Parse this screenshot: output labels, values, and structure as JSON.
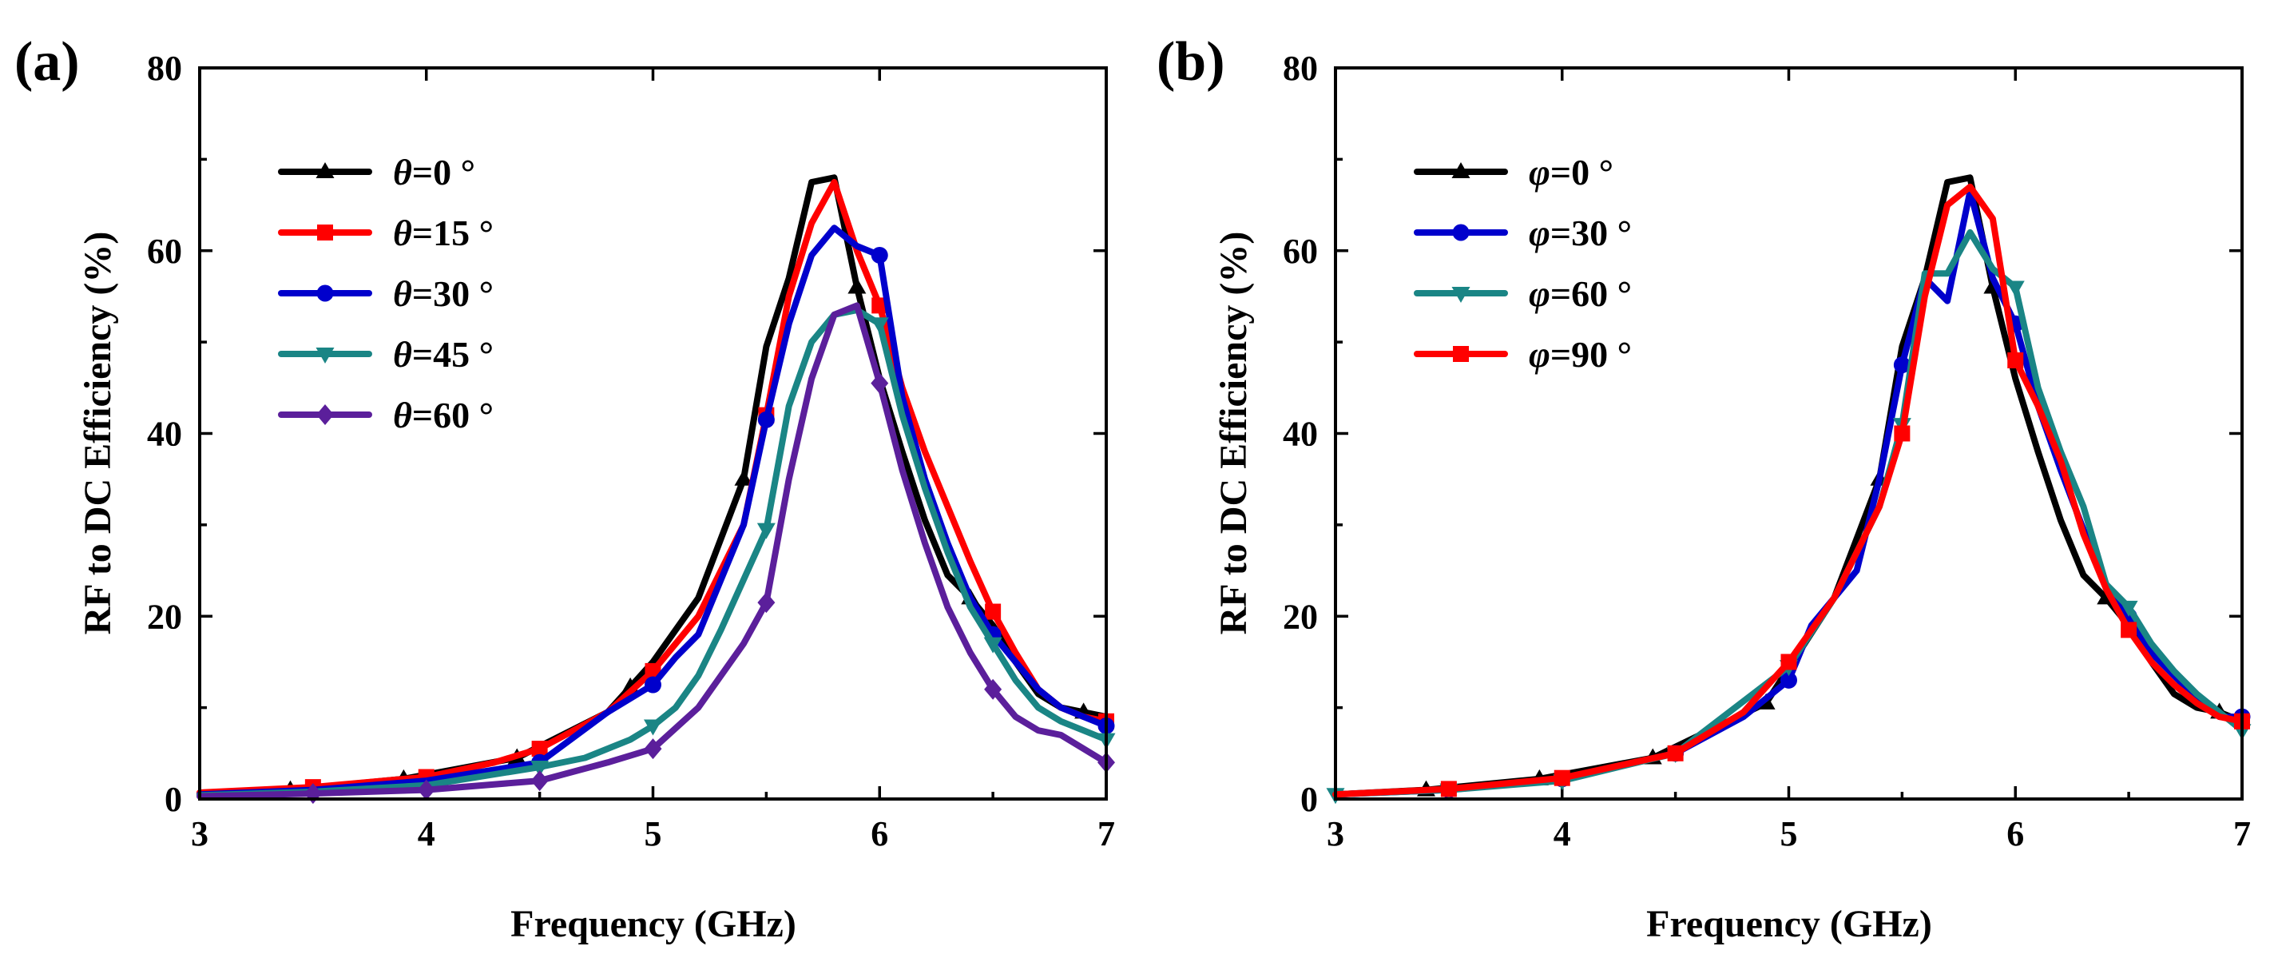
{
  "chart_data": [
    {
      "panel_label": "(a)",
      "type": "line",
      "xlabel": "Frequency (GHz)",
      "ylabel": "RF to DC Efficiency (%)",
      "xlim": [
        3,
        7
      ],
      "ylim": [
        0,
        80
      ],
      "xticks": [
        "3",
        "4",
        "5",
        "6",
        "7"
      ],
      "yticks": [
        "0",
        "20",
        "40",
        "60",
        "80"
      ],
      "legend_position": "top-left",
      "series": [
        {
          "name": "θ=0 °",
          "var": "θ",
          "val": "=0 °",
          "color": "#000000",
          "marker": "triangle-up",
          "x": [
            3.0,
            3.4,
            3.9,
            4.4,
            4.8,
            5.0,
            5.2,
            5.4,
            5.5,
            5.6,
            5.7,
            5.8,
            5.9,
            6.0,
            6.1,
            6.2,
            6.3,
            6.4,
            6.5,
            6.6,
            6.7,
            6.8,
            6.9,
            7.0
          ],
          "y": [
            0.5,
            1.0,
            2.2,
            4.5,
            9.5,
            15.0,
            22.0,
            35.0,
            49.5,
            57.0,
            67.5,
            68.0,
            56.0,
            46.0,
            38.0,
            30.5,
            24.5,
            22.0,
            19.0,
            15.0,
            11.5,
            10.0,
            9.5,
            9.0
          ],
          "markers_x": [
            3.4,
            3.9,
            4.4,
            4.9,
            5.4,
            5.9,
            6.4,
            6.9
          ]
        },
        {
          "name": "θ=15 °",
          "var": "θ",
          "val": "=15 °",
          "color": "#ff0000",
          "marker": "square",
          "x": [
            3.0,
            3.5,
            4.0,
            4.3,
            4.5,
            4.8,
            5.0,
            5.2,
            5.4,
            5.5,
            5.6,
            5.7,
            5.8,
            5.9,
            6.0,
            6.1,
            6.2,
            6.3,
            6.4,
            6.5,
            6.6,
            6.7,
            6.8,
            6.9,
            7.0
          ],
          "y": [
            0.7,
            1.3,
            2.4,
            4.0,
            5.5,
            9.5,
            14.0,
            20.0,
            30.0,
            42.0,
            55.0,
            63.0,
            67.5,
            60.0,
            54.0,
            45.0,
            38.0,
            32.0,
            26.0,
            20.5,
            16.0,
            12.0,
            10.0,
            9.0,
            8.5
          ],
          "markers_x": [
            3.5,
            4.0,
            4.5,
            5.0,
            5.5,
            6.0,
            6.5,
            7.0
          ]
        },
        {
          "name": "θ=30 °",
          "var": "θ",
          "val": "=30 °",
          "color": "#0000cc",
          "marker": "circle",
          "x": [
            3.0,
            3.5,
            4.0,
            4.5,
            4.8,
            5.0,
            5.1,
            5.2,
            5.4,
            5.5,
            5.6,
            5.7,
            5.8,
            5.9,
            6.0,
            6.1,
            6.2,
            6.3,
            6.4,
            6.5,
            6.6,
            6.7,
            6.8,
            6.9,
            7.0
          ],
          "y": [
            0.5,
            1.0,
            2.0,
            4.0,
            9.5,
            12.5,
            15.5,
            18.0,
            30.0,
            41.5,
            52.0,
            59.5,
            62.5,
            60.5,
            59.5,
            44.0,
            35.0,
            28.0,
            22.0,
            18.0,
            15.0,
            12.0,
            10.0,
            9.0,
            8.0
          ],
          "markers_x": [
            4.5,
            5.0,
            5.5,
            6.0,
            6.5,
            7.0
          ]
        },
        {
          "name": "θ=45 °",
          "var": "θ",
          "val": "=45 °",
          "color": "#1a8585",
          "marker": "triangle-down",
          "x": [
            3.0,
            3.5,
            4.0,
            4.5,
            4.7,
            4.9,
            5.0,
            5.1,
            5.2,
            5.3,
            5.4,
            5.5,
            5.6,
            5.7,
            5.8,
            5.9,
            6.0,
            6.1,
            6.2,
            6.3,
            6.4,
            6.5,
            6.6,
            6.7,
            6.8,
            6.9,
            7.0
          ],
          "y": [
            0.4,
            0.8,
            1.5,
            3.5,
            4.5,
            6.5,
            8.0,
            10.0,
            13.5,
            18.5,
            24.0,
            29.5,
            43.0,
            50.0,
            53.0,
            53.5,
            52.0,
            42.0,
            34.0,
            27.0,
            21.0,
            17.0,
            13.0,
            10.0,
            8.5,
            7.5,
            6.5
          ],
          "markers_x": [
            4.5,
            5.0,
            5.5,
            6.0,
            6.5,
            7.0
          ]
        },
        {
          "name": "θ=60 °",
          "var": "θ",
          "val": "=60 °",
          "color": "#5b1f9b",
          "marker": "diamond",
          "x": [
            3.0,
            3.5,
            4.0,
            4.5,
            4.8,
            5.0,
            5.2,
            5.4,
            5.5,
            5.6,
            5.7,
            5.8,
            5.9,
            6.0,
            6.1,
            6.2,
            6.3,
            6.4,
            6.5,
            6.6,
            6.7,
            6.8,
            6.9,
            7.0
          ],
          "y": [
            0.3,
            0.6,
            1.0,
            2.0,
            4.0,
            5.5,
            10.0,
            17.0,
            21.5,
            35.0,
            46.0,
            53.0,
            54.0,
            45.5,
            36.0,
            28.0,
            21.0,
            16.0,
            12.0,
            9.0,
            7.5,
            7.0,
            5.5,
            4.0
          ],
          "markers_x": [
            3.5,
            4.0,
            4.5,
            5.0,
            5.5,
            6.0,
            6.5,
            7.0
          ]
        }
      ]
    },
    {
      "panel_label": "(b)",
      "type": "line",
      "xlabel": "Frequency (GHz)",
      "ylabel": "RF to DC Efficiency (%)",
      "xlim": [
        3,
        7
      ],
      "ylim": [
        0,
        80
      ],
      "xticks": [
        "3",
        "4",
        "5",
        "6",
        "7"
      ],
      "yticks": [
        "0",
        "20",
        "40",
        "60",
        "80"
      ],
      "legend_position": "top-left",
      "series": [
        {
          "name": "φ=0 °",
          "var": "φ",
          "val": "=0 °",
          "color": "#000000",
          "marker": "triangle-up",
          "x": [
            3.0,
            3.4,
            3.9,
            4.4,
            4.9,
            5.2,
            5.4,
            5.5,
            5.6,
            5.7,
            5.8,
            5.9,
            6.0,
            6.1,
            6.2,
            6.3,
            6.4,
            6.5,
            6.6,
            6.7,
            6.8,
            6.9,
            7.0
          ],
          "y": [
            0.5,
            1.0,
            2.2,
            4.5,
            10.5,
            22.0,
            35.0,
            49.5,
            57.0,
            67.5,
            68.0,
            56.0,
            46.0,
            38.0,
            30.5,
            24.5,
            22.0,
            19.0,
            15.0,
            11.5,
            10.0,
            9.5,
            8.5
          ],
          "markers_x": [
            3.4,
            3.9,
            4.4,
            4.9,
            5.4,
            5.9,
            6.4,
            6.9
          ]
        },
        {
          "name": "φ=30 °",
          "var": "φ",
          "val": "=30 °",
          "color": "#0000cc",
          "marker": "circle",
          "x": [
            3.0,
            3.5,
            4.0,
            4.5,
            4.8,
            5.0,
            5.1,
            5.2,
            5.3,
            5.4,
            5.5,
            5.6,
            5.7,
            5.8,
            5.9,
            6.0,
            6.1,
            6.2,
            6.3,
            6.4,
            6.5,
            6.6,
            6.7,
            6.8,
            6.9,
            7.0
          ],
          "y": [
            0.5,
            1.0,
            2.2,
            5.0,
            9.0,
            13.0,
            19.0,
            22.0,
            25.0,
            35.0,
            47.5,
            57.0,
            54.5,
            66.5,
            57.0,
            52.0,
            43.0,
            36.0,
            29.5,
            23.5,
            20.0,
            16.0,
            13.5,
            11.0,
            9.0,
            9.0
          ],
          "markers_x": [
            3.5,
            4.0,
            4.5,
            5.0,
            5.5,
            6.0,
            6.5,
            7.0
          ]
        },
        {
          "name": "φ=60 °",
          "var": "φ",
          "val": "=60 °",
          "color": "#1a8585",
          "marker": "triangle-down",
          "x": [
            3.0,
            3.5,
            4.0,
            4.5,
            5.0,
            5.2,
            5.4,
            5.5,
            5.6,
            5.7,
            5.8,
            5.9,
            6.0,
            6.1,
            6.2,
            6.3,
            6.4,
            6.5,
            6.6,
            6.7,
            6.8,
            6.9,
            7.0
          ],
          "y": [
            0.5,
            1.0,
            2.0,
            5.0,
            14.5,
            22.0,
            32.0,
            41.0,
            57.5,
            57.5,
            62.0,
            58.0,
            56.0,
            45.0,
            38.0,
            32.0,
            23.5,
            21.0,
            17.0,
            14.0,
            11.5,
            9.5,
            7.5
          ],
          "markers_x": [
            3.0,
            3.5,
            4.0,
            4.5,
            5.0,
            5.5,
            6.0,
            6.5,
            7.0
          ]
        },
        {
          "name": "φ=90 °",
          "var": "φ",
          "val": "=90 °",
          "color": "#ff0000",
          "marker": "square",
          "x": [
            3.0,
            3.5,
            4.0,
            4.5,
            4.8,
            5.0,
            5.2,
            5.4,
            5.5,
            5.6,
            5.7,
            5.8,
            5.9,
            6.0,
            6.1,
            6.2,
            6.3,
            6.4,
            6.5,
            6.6,
            6.7,
            6.8,
            6.9,
            7.0
          ],
          "y": [
            0.5,
            1.1,
            2.3,
            5.0,
            9.5,
            15.0,
            22.0,
            32.0,
            40.0,
            55.0,
            65.0,
            67.0,
            63.5,
            48.0,
            43.0,
            37.0,
            29.0,
            23.0,
            18.5,
            15.0,
            12.5,
            10.5,
            9.0,
            8.5
          ],
          "markers_x": [
            3.5,
            4.0,
            4.5,
            5.0,
            5.5,
            6.0,
            6.5,
            7.0
          ]
        }
      ]
    }
  ]
}
